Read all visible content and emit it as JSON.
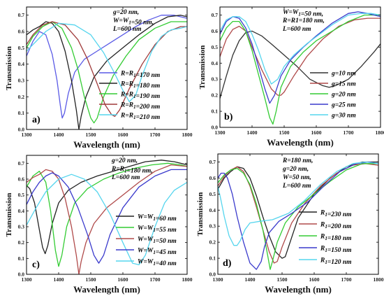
{
  "figure": {
    "ylabel": "Transmission",
    "xlabel": "Wavelength (nm)"
  },
  "chart_data": [
    {
      "type": "line",
      "panel_label": "a)",
      "xlim": [
        1300,
        1800
      ],
      "ylim": [
        0,
        0.75
      ],
      "xticks": [
        1300,
        1400,
        1500,
        1600,
        1700,
        1800
      ],
      "yticks": [
        0.0,
        0.1,
        0.2,
        0.3,
        0.4,
        0.5,
        0.6,
        0.7
      ],
      "xlabel": "Wavelength (nm)",
      "ylabel": "Transmission",
      "annotation": [
        "g=20 nm,",
        "W=W₁=50 nm,",
        "L=600 nm"
      ],
      "legend_position": "center-right",
      "series": [
        {
          "name": "R=R₁=170 nm",
          "color": "#5a5ae6",
          "x": [
            1300,
            1320,
            1340,
            1360,
            1380,
            1395,
            1405,
            1411,
            1418,
            1430,
            1450,
            1480,
            1520,
            1560,
            1600,
            1640,
            1680,
            1720,
            1760,
            1800
          ],
          "y": [
            0.45,
            0.54,
            0.6,
            0.58,
            0.46,
            0.3,
            0.15,
            0.07,
            0.1,
            0.22,
            0.35,
            0.43,
            0.48,
            0.53,
            0.58,
            0.63,
            0.67,
            0.7,
            0.7,
            0.68
          ]
        },
        {
          "name": "R=R₁=180 nm",
          "color": "#222222",
          "x": [
            1300,
            1320,
            1340,
            1360,
            1380,
            1400,
            1420,
            1440,
            1455,
            1463,
            1470,
            1485,
            1510,
            1550,
            1600,
            1650,
            1700,
            1740,
            1780,
            1800
          ],
          "y": [
            0.58,
            0.61,
            0.63,
            0.66,
            0.65,
            0.6,
            0.48,
            0.3,
            0.12,
            0.0,
            0.08,
            0.2,
            0.32,
            0.42,
            0.5,
            0.58,
            0.65,
            0.69,
            0.7,
            0.69
          ]
        },
        {
          "name": "R=R₁=190 nm",
          "color": "#33cc33",
          "x": [
            1300,
            1320,
            1350,
            1380,
            1410,
            1440,
            1460,
            1480,
            1500,
            1510,
            1520,
            1540,
            1570,
            1610,
            1650,
            1700,
            1750,
            1800
          ],
          "y": [
            0.5,
            0.57,
            0.63,
            0.66,
            0.62,
            0.5,
            0.37,
            0.2,
            0.07,
            0.04,
            0.07,
            0.2,
            0.33,
            0.45,
            0.55,
            0.62,
            0.66,
            0.66
          ]
        },
        {
          "name": "R=R₁=200 nm",
          "color": "#a03a3a",
          "x": [
            1300,
            1320,
            1350,
            1380,
            1420,
            1460,
            1490,
            1520,
            1545,
            1565,
            1575,
            1590,
            1620,
            1660,
            1700,
            1740,
            1780,
            1800
          ],
          "y": [
            0.52,
            0.58,
            0.64,
            0.66,
            0.64,
            0.55,
            0.43,
            0.28,
            0.15,
            0.09,
            0.08,
            0.12,
            0.25,
            0.4,
            0.52,
            0.6,
            0.63,
            0.63
          ]
        },
        {
          "name": "R=R₁=210 nm",
          "color": "#55d5ee",
          "x": [
            1300,
            1330,
            1360,
            1400,
            1450,
            1500,
            1540,
            1570,
            1600,
            1620,
            1640,
            1660,
            1690,
            1720,
            1750,
            1780,
            1800
          ],
          "y": [
            0.48,
            0.54,
            0.6,
            0.65,
            0.64,
            0.58,
            0.47,
            0.36,
            0.24,
            0.17,
            0.21,
            0.33,
            0.48,
            0.57,
            0.61,
            0.62,
            0.63
          ]
        }
      ]
    },
    {
      "type": "line",
      "panel_label": "b)",
      "xlim": [
        1300,
        1800
      ],
      "ylim": [
        0,
        0.75
      ],
      "xticks": [
        1300,
        1400,
        1500,
        1600,
        1700,
        1800
      ],
      "yticks": [
        0.0,
        0.1,
        0.2,
        0.3,
        0.4,
        0.5,
        0.6,
        0.7
      ],
      "xlabel": "Wavelength (nm)",
      "ylabel": "Transmission",
      "annotation": [
        "W=W₁=50 nm,",
        "R=R1=180 nm,",
        "L=600 nm"
      ],
      "legend_position": "bottom-right",
      "series": [
        {
          "name": "g=10 nm",
          "color": "#333333",
          "x": [
            1300,
            1320,
            1340,
            1360,
            1380,
            1400,
            1430,
            1460,
            1500,
            1540,
            1580,
            1620,
            1640,
            1660,
            1700,
            1740,
            1780,
            1800
          ],
          "y": [
            0.18,
            0.32,
            0.45,
            0.54,
            0.59,
            0.6,
            0.57,
            0.52,
            0.45,
            0.38,
            0.3,
            0.26,
            0.25,
            0.26,
            0.3,
            0.38,
            0.47,
            0.52
          ]
        },
        {
          "name": "g=15 nm",
          "color": "#b04a4a",
          "x": [
            1300,
            1320,
            1340,
            1360,
            1380,
            1400,
            1430,
            1460,
            1480,
            1490,
            1500,
            1530,
            1570,
            1620,
            1670,
            1720,
            1760,
            1800
          ],
          "y": [
            0.44,
            0.55,
            0.61,
            0.63,
            0.6,
            0.5,
            0.36,
            0.24,
            0.2,
            0.2,
            0.22,
            0.32,
            0.44,
            0.55,
            0.63,
            0.67,
            0.68,
            0.68
          ]
        },
        {
          "name": "g=20 nm",
          "color": "#33cc33",
          "x": [
            1300,
            1320,
            1340,
            1360,
            1380,
            1400,
            1420,
            1440,
            1455,
            1465,
            1475,
            1490,
            1520,
            1560,
            1600,
            1650,
            1700,
            1750,
            1800
          ],
          "y": [
            0.54,
            0.62,
            0.66,
            0.66,
            0.6,
            0.48,
            0.33,
            0.18,
            0.06,
            0.02,
            0.1,
            0.25,
            0.38,
            0.47,
            0.54,
            0.6,
            0.66,
            0.7,
            0.7
          ]
        },
        {
          "name": "g=25 nm",
          "color": "#3a3acc",
          "x": [
            1300,
            1320,
            1340,
            1360,
            1380,
            1400,
            1420,
            1440,
            1455,
            1470,
            1490,
            1520,
            1560,
            1600,
            1650,
            1700,
            1730,
            1760,
            1800
          ],
          "y": [
            0.58,
            0.66,
            0.69,
            0.68,
            0.62,
            0.52,
            0.38,
            0.24,
            0.15,
            0.2,
            0.32,
            0.42,
            0.5,
            0.57,
            0.65,
            0.71,
            0.72,
            0.71,
            0.69
          ]
        },
        {
          "name": "g=30 nm",
          "color": "#55d5ee",
          "x": [
            1300,
            1320,
            1340,
            1360,
            1380,
            1400,
            1420,
            1440,
            1460,
            1480,
            1500,
            1530,
            1570,
            1610,
            1650,
            1700,
            1740,
            1770,
            1800
          ],
          "y": [
            0.6,
            0.67,
            0.69,
            0.69,
            0.66,
            0.58,
            0.48,
            0.36,
            0.27,
            0.3,
            0.38,
            0.45,
            0.52,
            0.58,
            0.64,
            0.7,
            0.71,
            0.71,
            0.7
          ]
        }
      ]
    },
    {
      "type": "line",
      "panel_label": "c)",
      "xlim": [
        1300,
        1800
      ],
      "ylim": [
        0,
        0.75
      ],
      "xticks": [
        1300,
        1400,
        1500,
        1600,
        1700,
        1800
      ],
      "yticks": [
        0.0,
        0.1,
        0.2,
        0.3,
        0.4,
        0.5,
        0.6,
        0.7
      ],
      "xlabel": "Wavelength (nm)",
      "ylabel": "Transmission",
      "annotation": [
        "g=20 nm,",
        "R=R₁=180 nm,",
        "L=600 nm"
      ],
      "legend_position": "bottom-right",
      "series": [
        {
          "name": "W=W₁=60 nm",
          "color": "#222222",
          "x": [
            1300,
            1310,
            1325,
            1340,
            1350,
            1358,
            1366,
            1380,
            1400,
            1430,
            1470,
            1520,
            1570,
            1620,
            1670,
            1720,
            1760,
            1800
          ],
          "y": [
            0.56,
            0.54,
            0.45,
            0.28,
            0.17,
            0.13,
            0.18,
            0.32,
            0.45,
            0.53,
            0.58,
            0.62,
            0.65,
            0.68,
            0.71,
            0.72,
            0.71,
            0.69
          ]
        },
        {
          "name": "W=W₁=55 nm",
          "color": "#33cc33",
          "x": [
            1300,
            1320,
            1340,
            1360,
            1375,
            1390,
            1400,
            1410,
            1425,
            1450,
            1490,
            1540,
            1590,
            1640,
            1690,
            1740,
            1780,
            1800
          ],
          "y": [
            0.55,
            0.62,
            0.65,
            0.58,
            0.4,
            0.15,
            0.05,
            0.12,
            0.3,
            0.45,
            0.54,
            0.6,
            0.64,
            0.67,
            0.69,
            0.7,
            0.69,
            0.68
          ]
        },
        {
          "name": "W=W₁=50 nm",
          "color": "#b04a4a",
          "x": [
            1300,
            1320,
            1340,
            1360,
            1380,
            1400,
            1420,
            1440,
            1455,
            1463,
            1470,
            1485,
            1510,
            1550,
            1600,
            1650,
            1700,
            1750,
            1800
          ],
          "y": [
            0.58,
            0.61,
            0.63,
            0.66,
            0.65,
            0.6,
            0.48,
            0.3,
            0.12,
            0.0,
            0.08,
            0.2,
            0.32,
            0.42,
            0.5,
            0.58,
            0.65,
            0.69,
            0.68
          ]
        },
        {
          "name": "W=W₁=45 nm",
          "color": "#3a3acc",
          "x": [
            1300,
            1320,
            1340,
            1360,
            1380,
            1400,
            1430,
            1460,
            1490,
            1510,
            1525,
            1540,
            1560,
            1600,
            1650,
            1700,
            1750,
            1800
          ],
          "y": [
            0.44,
            0.52,
            0.58,
            0.62,
            0.64,
            0.62,
            0.55,
            0.42,
            0.25,
            0.12,
            0.07,
            0.12,
            0.25,
            0.42,
            0.55,
            0.62,
            0.66,
            0.66
          ]
        },
        {
          "name": "W=W₁=40 nm",
          "color": "#55d5ee",
          "x": [
            1300,
            1330,
            1360,
            1400,
            1440,
            1480,
            1520,
            1560,
            1600,
            1630,
            1650,
            1670,
            1700,
            1730,
            1760,
            1800
          ],
          "y": [
            0.31,
            0.42,
            0.52,
            0.6,
            0.63,
            0.6,
            0.52,
            0.38,
            0.2,
            0.07,
            0.06,
            0.12,
            0.3,
            0.45,
            0.53,
            0.58
          ]
        }
      ]
    },
    {
      "type": "line",
      "panel_label": "d)",
      "xlim": [
        1300,
        1800
      ],
      "ylim": [
        0,
        0.75
      ],
      "xticks": [
        1300,
        1400,
        1500,
        1600,
        1700,
        1800
      ],
      "yticks": [
        0.0,
        0.1,
        0.2,
        0.3,
        0.4,
        0.5,
        0.6,
        0.7
      ],
      "xlabel": "Wavelength (nm)",
      "ylabel": "Transmission",
      "annotation": [
        "R=180 nm,",
        "g=20 nm,",
        "W=50 nm,",
        "L=600 nm"
      ],
      "legend_position": "bottom-right",
      "series": [
        {
          "name": "R₁=230 nm",
          "color": "#222222",
          "x": [
            1300,
            1320,
            1340,
            1360,
            1380,
            1400,
            1420,
            1440,
            1460,
            1480,
            1500,
            1510,
            1525,
            1550,
            1600,
            1650,
            1700,
            1750,
            1800
          ],
          "y": [
            0.53,
            0.6,
            0.64,
            0.67,
            0.66,
            0.6,
            0.49,
            0.36,
            0.24,
            0.14,
            0.1,
            0.11,
            0.2,
            0.35,
            0.5,
            0.6,
            0.67,
            0.7,
            0.7
          ]
        },
        {
          "name": "R₁=200 nm",
          "color": "#b04a4a",
          "x": [
            1300,
            1320,
            1340,
            1360,
            1380,
            1400,
            1420,
            1440,
            1460,
            1475,
            1485,
            1500,
            1530,
            1570,
            1620,
            1670,
            1720,
            1760,
            1800
          ],
          "y": [
            0.55,
            0.61,
            0.65,
            0.67,
            0.64,
            0.55,
            0.42,
            0.28,
            0.14,
            0.07,
            0.08,
            0.17,
            0.32,
            0.44,
            0.55,
            0.63,
            0.68,
            0.69,
            0.68
          ]
        },
        {
          "name": "R₁=180 nm",
          "color": "#33cc33",
          "x": [
            1300,
            1320,
            1340,
            1360,
            1380,
            1400,
            1420,
            1440,
            1455,
            1463,
            1470,
            1485,
            1510,
            1550,
            1600,
            1650,
            1700,
            1750,
            1800
          ],
          "y": [
            0.57,
            0.62,
            0.65,
            0.66,
            0.63,
            0.56,
            0.44,
            0.28,
            0.12,
            0.03,
            0.08,
            0.2,
            0.32,
            0.42,
            0.5,
            0.58,
            0.65,
            0.69,
            0.69
          ]
        },
        {
          "name": "R₁=150 nm",
          "color": "#3a3acc",
          "x": [
            1300,
            1310,
            1320,
            1330,
            1345,
            1360,
            1380,
            1400,
            1420,
            1435,
            1445,
            1460,
            1490,
            1530,
            1580,
            1630,
            1680,
            1730,
            1770,
            1800
          ],
          "y": [
            0.6,
            0.63,
            0.63,
            0.6,
            0.5,
            0.36,
            0.2,
            0.07,
            0.03,
            0.08,
            0.17,
            0.26,
            0.33,
            0.38,
            0.45,
            0.55,
            0.64,
            0.69,
            0.7,
            0.69
          ]
        },
        {
          "name": "R₁=120 nm",
          "color": "#55d5ee",
          "x": [
            1300,
            1310,
            1320,
            1335,
            1350,
            1360,
            1370,
            1385,
            1400,
            1430,
            1470,
            1520,
            1570,
            1620,
            1670,
            1720,
            1760,
            1800
          ],
          "y": [
            0.55,
            0.46,
            0.36,
            0.24,
            0.18,
            0.18,
            0.21,
            0.28,
            0.32,
            0.33,
            0.34,
            0.38,
            0.46,
            0.56,
            0.64,
            0.69,
            0.7,
            0.69
          ]
        }
      ]
    }
  ]
}
